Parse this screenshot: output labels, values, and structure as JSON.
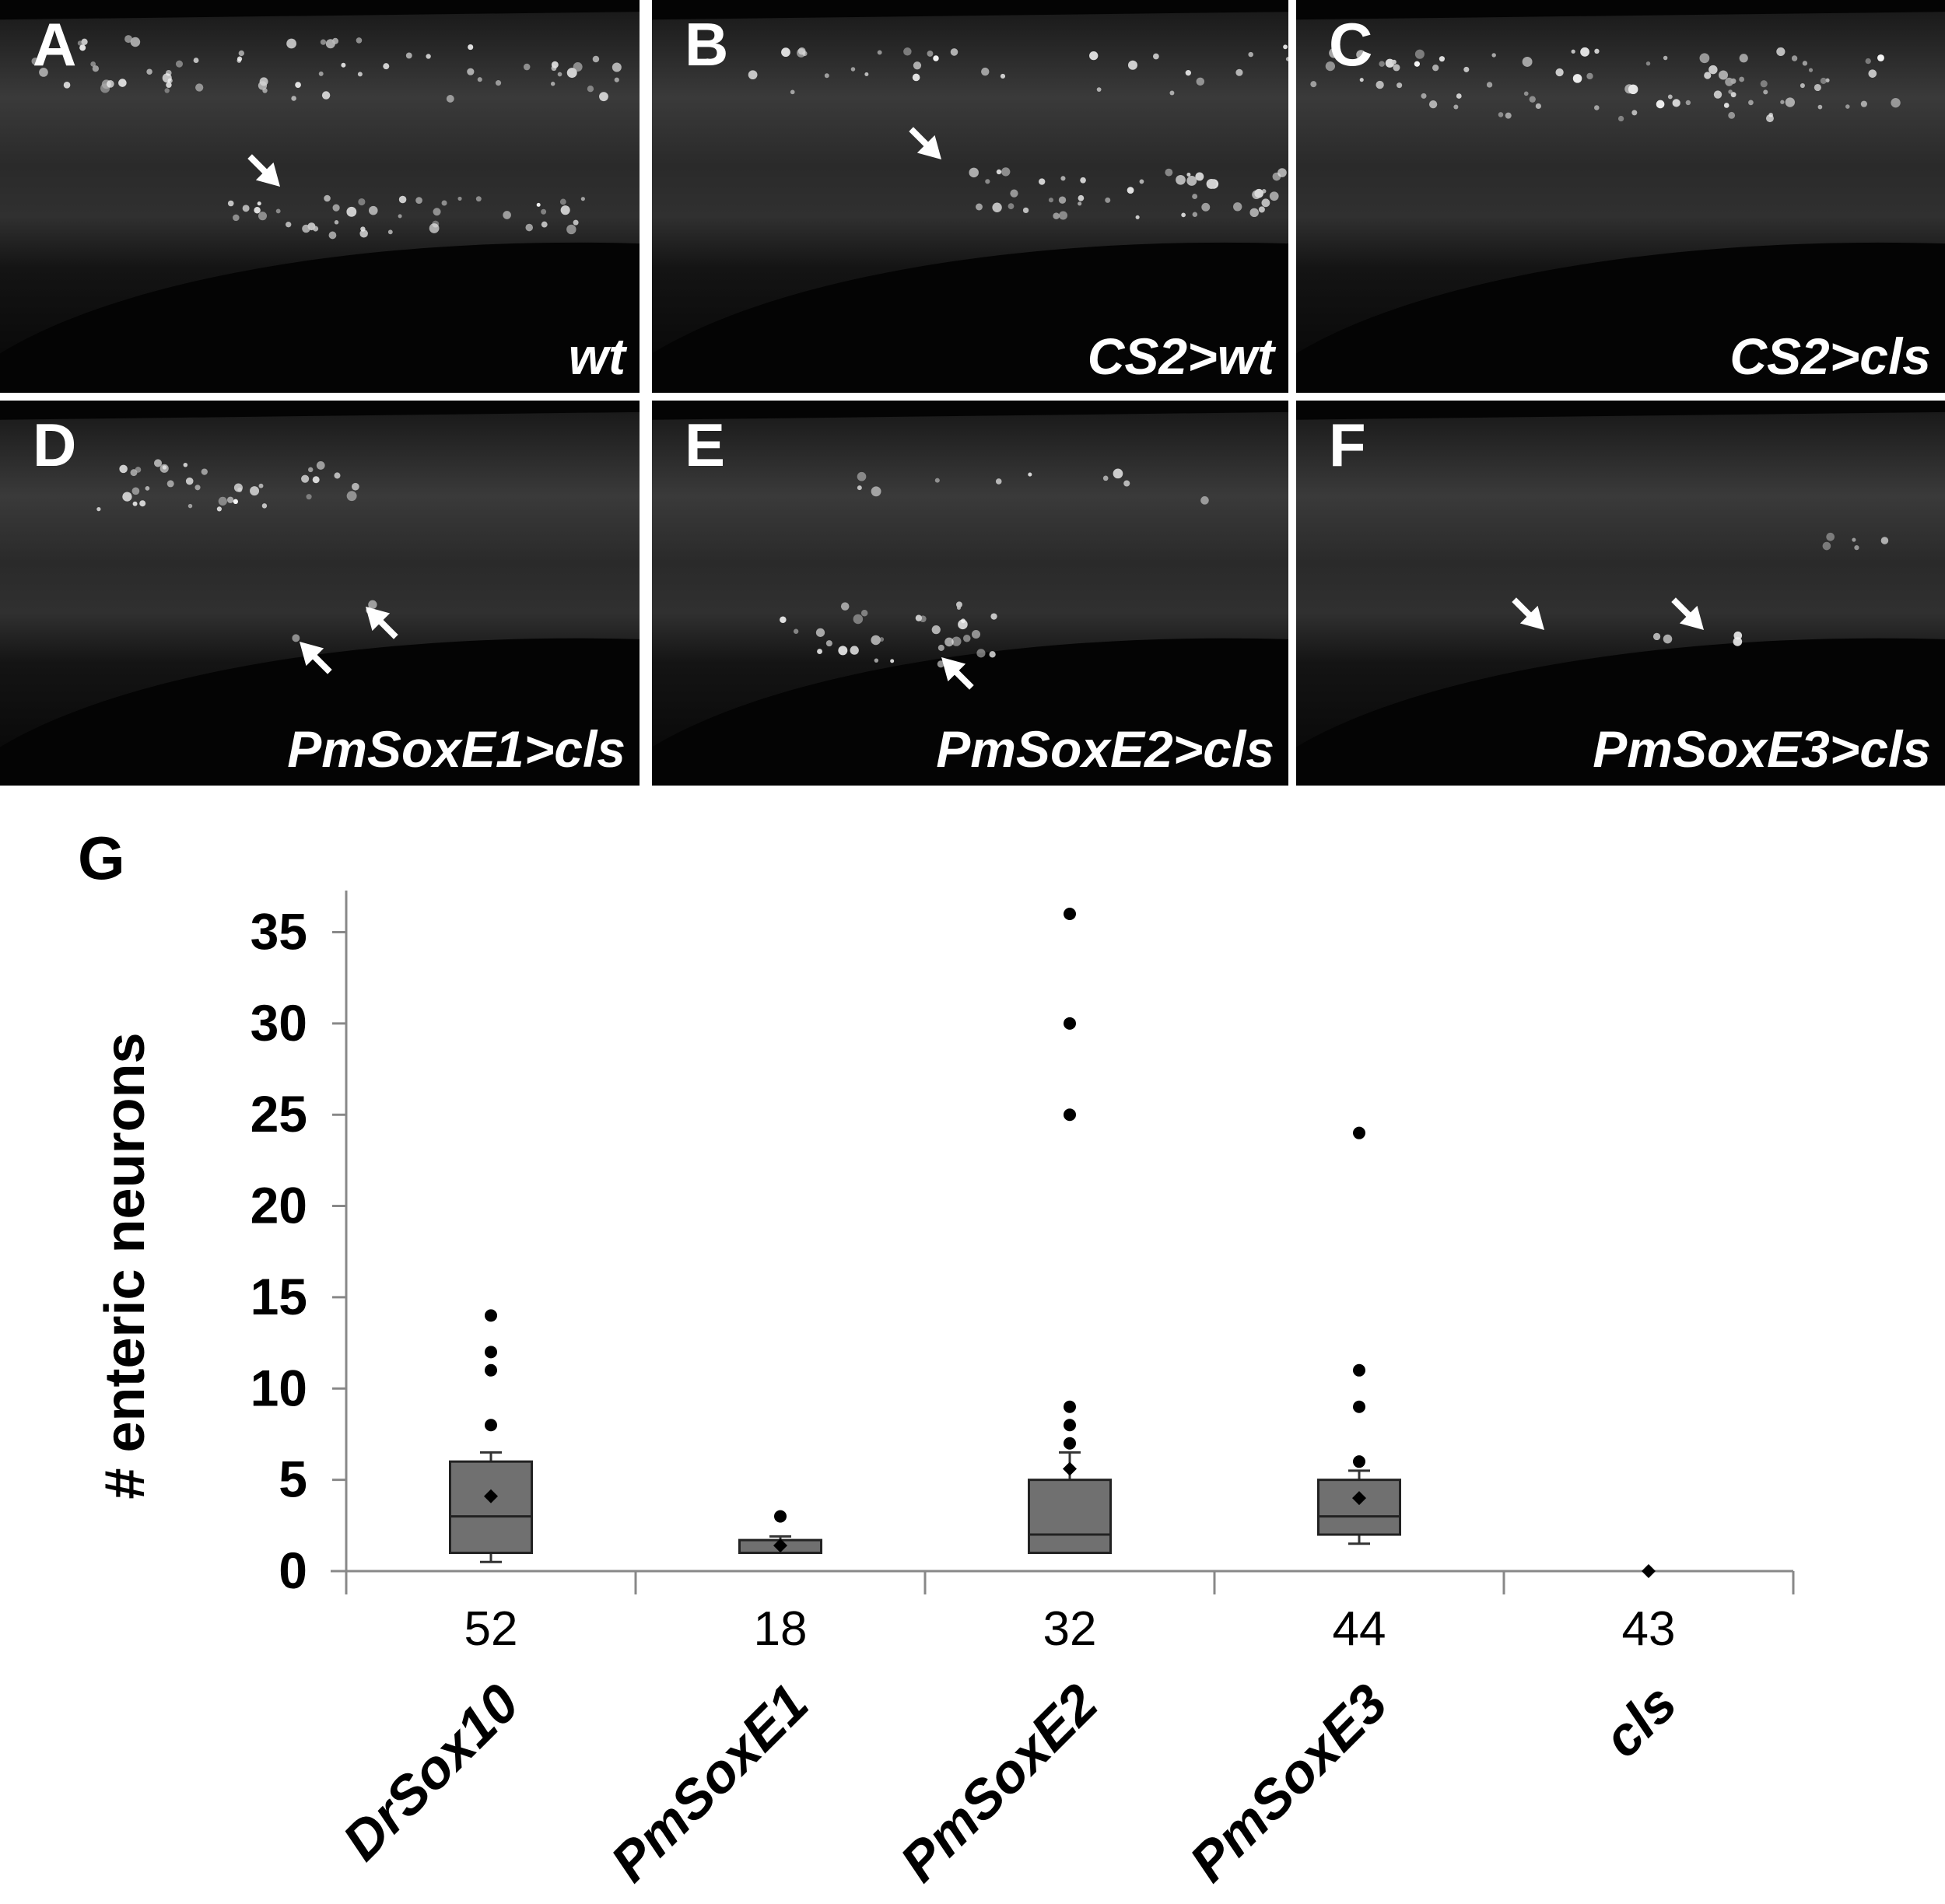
{
  "panels": [
    {
      "letter": "A",
      "genotype": "wt"
    },
    {
      "letter": "B",
      "genotype": "CS2>wt"
    },
    {
      "letter": "C",
      "genotype": "CS2>cls"
    },
    {
      "letter": "D",
      "genotype": "PmSoxE1>cls"
    },
    {
      "letter": "E",
      "genotype": "PmSoxE2>cls"
    },
    {
      "letter": "F",
      "genotype": "PmSoxE3>cls"
    }
  ],
  "chart_data": {
    "panel_letter": "G",
    "type": "box",
    "ylabel": "# enteric neurons",
    "ylim": [
      0,
      36
    ],
    "yticks": [
      0,
      5,
      10,
      15,
      20,
      25,
      30,
      35
    ],
    "categories": [
      "DrSox10",
      "PmSoxE1",
      "PmSoxE2",
      "PmSoxE3",
      "cls"
    ],
    "n": [
      "52",
      "18",
      "32",
      "44",
      "43"
    ],
    "boxes": [
      {
        "q1": 1,
        "median": 3,
        "q3": 6,
        "whisker_low": 0.5,
        "whisker_high": 6.5,
        "mean": 4.1,
        "outliers": [
          8,
          11,
          12,
          14
        ]
      },
      {
        "q1": 1,
        "median": 1,
        "q3": 1.7,
        "whisker_low": 1,
        "whisker_high": 1.9,
        "mean": 1.4,
        "outliers": [
          3
        ]
      },
      {
        "q1": 1,
        "median": 2,
        "q3": 5,
        "whisker_low": 1,
        "whisker_high": 6.5,
        "mean": 5.6,
        "outliers": [
          7,
          8,
          9,
          25,
          30,
          36
        ]
      },
      {
        "q1": 2,
        "median": 3,
        "q3": 5,
        "whisker_low": 1.5,
        "whisker_high": 5.5,
        "mean": 4,
        "outliers": [
          6,
          9,
          11,
          24
        ]
      },
      {
        "q1": 0,
        "median": 0,
        "q3": 0,
        "whisker_low": 0,
        "whisker_high": 0,
        "mean": 0,
        "outliers": []
      }
    ],
    "box_color": "#707070",
    "grid": false
  }
}
